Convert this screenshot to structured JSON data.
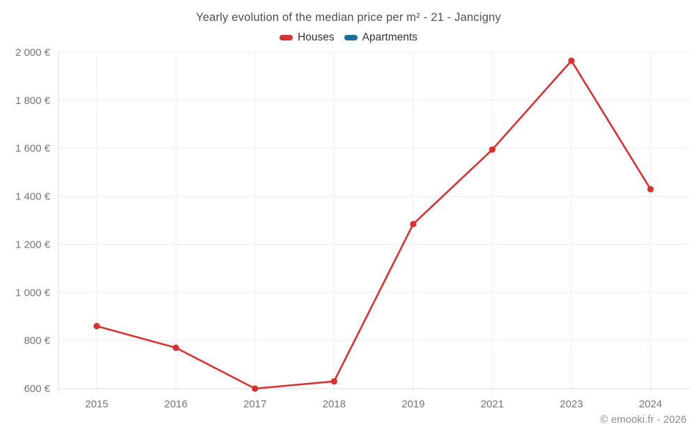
{
  "header": {
    "title": "Yearly evolution of the median price per m² - 21 - Jancigny"
  },
  "legend": {
    "houses": {
      "label": "Houses",
      "color": "#d93030"
    },
    "apartments": {
      "label": "Apartments",
      "color": "#1a6f9c"
    }
  },
  "footer": {
    "credit": "© emooki.fr - 2026"
  },
  "chart_data": {
    "type": "line",
    "title": "Yearly evolution of the median price per m² - 21 - Jancigny",
    "categories": [
      "2015",
      "2016",
      "2017",
      "2018",
      "2019",
      "2021",
      "2023",
      "2024"
    ],
    "series": [
      {
        "name": "Houses",
        "color": "#d93030",
        "values": [
          860,
          770,
          600,
          630,
          1285,
          1595,
          1965,
          1430
        ]
      },
      {
        "name": "Apartments",
        "color": "#1a6f9c",
        "values": []
      }
    ],
    "xlabel": "",
    "ylabel": "",
    "ylim": [
      600,
      2000
    ],
    "y_ticks": [
      600,
      800,
      1000,
      1200,
      1400,
      1600,
      1800,
      2000
    ],
    "y_tick_labels": [
      "600 €",
      "800 €",
      "1 000 €",
      "1 200 €",
      "1 400 €",
      "1 600 €",
      "1 800 €",
      "2 000 €"
    ],
    "grid": true,
    "legend_position": "top",
    "marker": "circle"
  },
  "colors": {
    "grid_line": "#ececec",
    "axis_line": "#dcdcdc",
    "tick_text": "#757575"
  }
}
